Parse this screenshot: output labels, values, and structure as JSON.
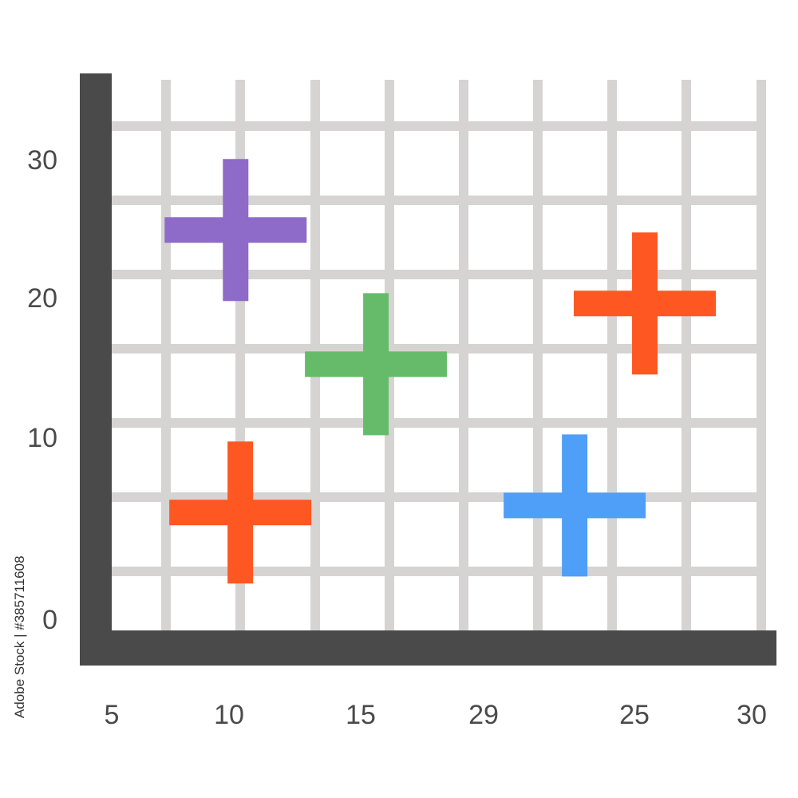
{
  "chart_data": {
    "type": "scatter",
    "marker": "plus",
    "title": "",
    "xlabel": "",
    "ylabel": "",
    "grid": true,
    "legend": "none",
    "x_tick_labels": [
      "5",
      "10",
      "15",
      "29",
      "25",
      "30"
    ],
    "y_tick_labels": [
      "30",
      "20",
      "10",
      "0"
    ],
    "points": [
      {
        "x": 10.3,
        "y": 27.5,
        "color": "#8e6bc8"
      },
      {
        "x": 16.3,
        "y": 18.0,
        "color": "#66bb6a"
      },
      {
        "x": 27.8,
        "y": 22.3,
        "color": "#ff5722"
      },
      {
        "x": 10.5,
        "y": 7.5,
        "color": "#ff5722"
      },
      {
        "x": 24.8,
        "y": 8.0,
        "color": "#4f9ef8"
      }
    ]
  },
  "colors": {
    "axis": "#4a4a4a",
    "grid": "#d6d3d3"
  },
  "watermark": {
    "credit": "Adobe Stock | #385711608"
  }
}
